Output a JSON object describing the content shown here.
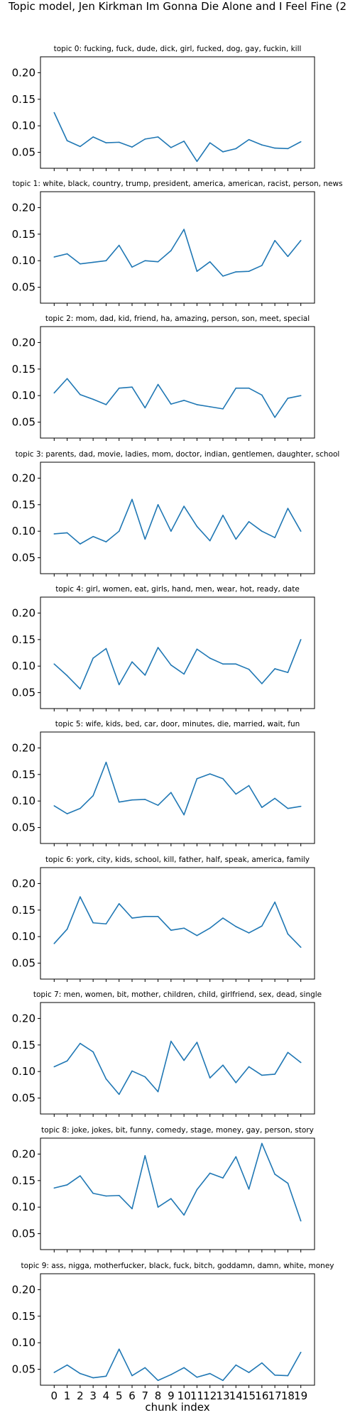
{
  "figure": {
    "title": "Topic model, Jen Kirkman  Im Gonna Die Alone and I Feel Fine (2",
    "line_color": "#1f77b4"
  },
  "chart_data": [
    {
      "type": "line",
      "title": "topic 0: fucking, fuck, dude, dick, girl, fucked, dog, gay, fuckin, kill",
      "x": [
        0,
        1,
        2,
        3,
        4,
        5,
        6,
        7,
        8,
        9,
        10,
        11,
        12,
        13,
        14,
        15,
        16,
        17,
        18,
        19
      ],
      "values": [
        0.125,
        0.072,
        0.061,
        0.079,
        0.068,
        0.069,
        0.06,
        0.075,
        0.079,
        0.059,
        0.071,
        0.033,
        0.068,
        0.051,
        0.057,
        0.074,
        0.064,
        0.058,
        0.057,
        0.07
      ],
      "xlabel": "",
      "ylabel": "",
      "ylim": [
        0.02,
        0.23
      ],
      "yticks": [
        "0.05",
        "0.10",
        "0.15",
        "0.20"
      ],
      "show_xticklabels": false
    },
    {
      "type": "line",
      "title": "topic 1: white, black, country, trump, president, america, american, racist, person, news",
      "x": [
        0,
        1,
        2,
        3,
        4,
        5,
        6,
        7,
        8,
        9,
        10,
        11,
        12,
        13,
        14,
        15,
        16,
        17,
        18,
        19
      ],
      "values": [
        0.107,
        0.113,
        0.094,
        0.097,
        0.1,
        0.129,
        0.088,
        0.1,
        0.098,
        0.119,
        0.159,
        0.08,
        0.098,
        0.071,
        0.079,
        0.08,
        0.091,
        0.138,
        0.108,
        0.138
      ],
      "xlabel": "",
      "ylabel": "",
      "ylim": [
        0.02,
        0.23
      ],
      "yticks": [
        "0.05",
        "0.10",
        "0.15",
        "0.20"
      ],
      "show_xticklabels": false
    },
    {
      "type": "line",
      "title": "topic 2: mom, dad, kid, friend, ha, amazing, person, son, meet, special",
      "x": [
        0,
        1,
        2,
        3,
        4,
        5,
        6,
        7,
        8,
        9,
        10,
        11,
        12,
        13,
        14,
        15,
        16,
        17,
        18,
        19
      ],
      "values": [
        0.105,
        0.132,
        0.102,
        0.093,
        0.083,
        0.114,
        0.116,
        0.077,
        0.121,
        0.084,
        0.091,
        0.083,
        0.079,
        0.075,
        0.114,
        0.114,
        0.101,
        0.059,
        0.095,
        0.1
      ],
      "xlabel": "",
      "ylabel": "",
      "ylim": [
        0.02,
        0.23
      ],
      "yticks": [
        "0.05",
        "0.10",
        "0.15",
        "0.20"
      ],
      "show_xticklabels": false
    },
    {
      "type": "line",
      "title": "topic 3: parents, dad, movie, ladies, mom, doctor, indian, gentlemen, daughter, school",
      "x": [
        0,
        1,
        2,
        3,
        4,
        5,
        6,
        7,
        8,
        9,
        10,
        11,
        12,
        13,
        14,
        15,
        16,
        17,
        18,
        19
      ],
      "values": [
        0.095,
        0.097,
        0.076,
        0.09,
        0.08,
        0.1,
        0.16,
        0.085,
        0.15,
        0.1,
        0.147,
        0.109,
        0.082,
        0.13,
        0.085,
        0.118,
        0.1,
        0.088,
        0.143,
        0.1
      ],
      "xlabel": "",
      "ylabel": "",
      "ylim": [
        0.02,
        0.23
      ],
      "yticks": [
        "0.05",
        "0.10",
        "0.15",
        "0.20"
      ],
      "show_xticklabels": false
    },
    {
      "type": "line",
      "title": "topic 4: girl, women, eat, girls, hand, men, wear, hot, ready, date",
      "x": [
        0,
        1,
        2,
        3,
        4,
        5,
        6,
        7,
        8,
        9,
        10,
        11,
        12,
        13,
        14,
        15,
        16,
        17,
        18,
        19
      ],
      "values": [
        0.104,
        0.082,
        0.057,
        0.115,
        0.133,
        0.065,
        0.108,
        0.083,
        0.135,
        0.102,
        0.085,
        0.132,
        0.115,
        0.104,
        0.104,
        0.094,
        0.067,
        0.095,
        0.088,
        0.15
      ],
      "xlabel": "",
      "ylabel": "",
      "ylim": [
        0.02,
        0.23
      ],
      "yticks": [
        "0.05",
        "0.10",
        "0.15",
        "0.20"
      ],
      "show_xticklabels": false
    },
    {
      "type": "line",
      "title": "topic 5: wife, kids, bed, car, door, minutes, die, married, wait, fun",
      "x": [
        0,
        1,
        2,
        3,
        4,
        5,
        6,
        7,
        8,
        9,
        10,
        11,
        12,
        13,
        14,
        15,
        16,
        17,
        18,
        19
      ],
      "values": [
        0.091,
        0.076,
        0.086,
        0.11,
        0.173,
        0.098,
        0.102,
        0.103,
        0.092,
        0.116,
        0.074,
        0.142,
        0.151,
        0.142,
        0.113,
        0.129,
        0.088,
        0.105,
        0.086,
        0.09
      ],
      "xlabel": "",
      "ylabel": "",
      "ylim": [
        0.02,
        0.23
      ],
      "yticks": [
        "0.05",
        "0.10",
        "0.15",
        "0.20"
      ],
      "show_xticklabels": false
    },
    {
      "type": "line",
      "title": "topic 6: york, city, kids, school, kill, father, half, speak, america, family",
      "x": [
        0,
        1,
        2,
        3,
        4,
        5,
        6,
        7,
        8,
        9,
        10,
        11,
        12,
        13,
        14,
        15,
        16,
        17,
        18,
        19
      ],
      "values": [
        0.087,
        0.114,
        0.175,
        0.126,
        0.124,
        0.162,
        0.135,
        0.138,
        0.138,
        0.112,
        0.116,
        0.102,
        0.116,
        0.135,
        0.119,
        0.107,
        0.12,
        0.165,
        0.105,
        0.08
      ],
      "xlabel": "",
      "ylabel": "",
      "ylim": [
        0.02,
        0.23
      ],
      "yticks": [
        "0.05",
        "0.10",
        "0.15",
        "0.20"
      ],
      "show_xticklabels": false
    },
    {
      "type": "line",
      "title": "topic 7: men, women, bit, mother, children, child, girlfriend, sex, dead, single",
      "x": [
        0,
        1,
        2,
        3,
        4,
        5,
        6,
        7,
        8,
        9,
        10,
        11,
        12,
        13,
        14,
        15,
        16,
        17,
        18,
        19
      ],
      "values": [
        0.109,
        0.12,
        0.153,
        0.137,
        0.086,
        0.057,
        0.101,
        0.09,
        0.062,
        0.157,
        0.121,
        0.155,
        0.088,
        0.112,
        0.079,
        0.109,
        0.093,
        0.095,
        0.136,
        0.117
      ],
      "xlabel": "",
      "ylabel": "",
      "ylim": [
        0.02,
        0.23
      ],
      "yticks": [
        "0.05",
        "0.10",
        "0.15",
        "0.20"
      ],
      "show_xticklabels": false
    },
    {
      "type": "line",
      "title": "topic 8: joke, jokes, bit, funny, comedy, stage, money, gay, person, story",
      "x": [
        0,
        1,
        2,
        3,
        4,
        5,
        6,
        7,
        8,
        9,
        10,
        11,
        12,
        13,
        14,
        15,
        16,
        17,
        18,
        19
      ],
      "values": [
        0.136,
        0.142,
        0.159,
        0.126,
        0.121,
        0.122,
        0.097,
        0.197,
        0.1,
        0.116,
        0.085,
        0.133,
        0.164,
        0.155,
        0.195,
        0.134,
        0.22,
        0.162,
        0.145,
        0.074
      ],
      "xlabel": "",
      "ylabel": "",
      "ylim": [
        0.02,
        0.23
      ],
      "yticks": [
        "0.05",
        "0.10",
        "0.15",
        "0.20"
      ],
      "show_xticklabels": false
    },
    {
      "type": "line",
      "title": "topic 9: ass, nigga, motherfucker, black, fuck, bitch, goddamn, damn, white, money",
      "x": [
        0,
        1,
        2,
        3,
        4,
        5,
        6,
        7,
        8,
        9,
        10,
        11,
        12,
        13,
        14,
        15,
        16,
        17,
        18,
        19
      ],
      "values": [
        0.044,
        0.058,
        0.042,
        0.034,
        0.037,
        0.088,
        0.038,
        0.053,
        0.029,
        0.04,
        0.053,
        0.035,
        0.042,
        0.029,
        0.058,
        0.044,
        0.062,
        0.039,
        0.038,
        0.082
      ],
      "xlabel": "chunk index",
      "ylabel": "",
      "ylim": [
        0.02,
        0.23
      ],
      "yticks": [
        "0.05",
        "0.10",
        "0.15",
        "0.20"
      ],
      "show_xticklabels": true,
      "xticks": [
        "0",
        "1",
        "2",
        "3",
        "4",
        "5",
        "6",
        "7",
        "8",
        "9",
        "10",
        "11",
        "12",
        "13",
        "14",
        "15",
        "16",
        "17",
        "18",
        "19"
      ]
    }
  ]
}
